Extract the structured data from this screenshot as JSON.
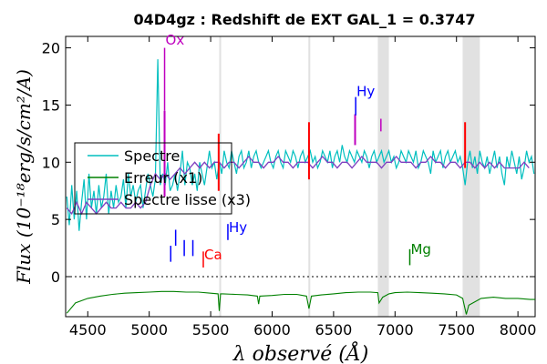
{
  "chart_data": {
    "type": "line",
    "title": "04D4gz : Redshift de EXT GAL_1 = 0.3747",
    "xlabel": "λ observé (Å)",
    "ylabel": "Flux (10⁻¹⁸erg/s/cm²/A)",
    "xlim": [
      4320,
      8140
    ],
    "ylim": [
      -3.5,
      21
    ],
    "x_ticks": [
      4500,
      5000,
      5500,
      6000,
      6500,
      7000,
      7500,
      8000
    ],
    "y_ticks": [
      0,
      5,
      10,
      15,
      20
    ],
    "grid": false,
    "legend": {
      "placement": "center-left",
      "entries": [
        {
          "label": "Spectre",
          "color": "#00bfbf"
        },
        {
          "label": "Erreur (x1)",
          "color": "#008000"
        },
        {
          "label": "Spectre lisse (x3)",
          "color": "#7f3fbf"
        }
      ]
    },
    "zero_line": {
      "y": 0,
      "style": "dotted",
      "color": "#000000"
    },
    "shaded_bands": [
      {
        "x0": 5570,
        "x1": 5585
      },
      {
        "x0": 6295,
        "x1": 6310
      },
      {
        "x0": 6860,
        "x1": 6950
      },
      {
        "x0": 7550,
        "x1": 7690
      }
    ],
    "lines_markers": [
      {
        "label": "Ox",
        "x": 5125,
        "y0": 14.5,
        "y1": 20,
        "label_y": 20.3,
        "color": "#bf00bf"
      },
      {
        "label": "Hy",
        "x": 6680,
        "y0": 14.1,
        "y1": 15.7,
        "label_y": 15.8,
        "color": "#0000ff"
      },
      {
        "label": "",
        "x": 6885,
        "y0": 13.8,
        "y1": 12.7,
        "label_y": null,
        "color": "#bf00bf"
      },
      {
        "label": "Hy",
        "x": 5640,
        "y0": 4.6,
        "y1": 3.2,
        "label_y": 3.9,
        "color": "#0000ff"
      },
      {
        "label": "Ca",
        "x": 5440,
        "y0": 2.2,
        "y1": 0.8,
        "label_y": 1.5,
        "color": "#ff0000"
      },
      {
        "label": "Mg",
        "x": 7120,
        "y0": 2.4,
        "y1": 1.0,
        "label_y": 2.0,
        "color": "#008000"
      },
      {
        "label": "",
        "x": 5175,
        "y0": 2.7,
        "y1": 1.3,
        "label_y": null,
        "color": "#0000ff"
      },
      {
        "label": "",
        "x": 5215,
        "y0": 4.1,
        "y1": 2.7,
        "label_y": null,
        "color": "#0000ff"
      },
      {
        "label": "",
        "x": 5285,
        "y0": 3.2,
        "y1": 1.8,
        "label_y": null,
        "color": "#0000ff"
      },
      {
        "label": "",
        "x": 5355,
        "y0": 3.2,
        "y1": 1.8,
        "label_y": null,
        "color": "#0000ff"
      }
    ],
    "spikes": [
      {
        "x": 5565,
        "y0": 7.5,
        "y1": 12.5,
        "color": "#ff0000"
      },
      {
        "x": 6300,
        "y0": 8.5,
        "y1": 13.5,
        "color": "#ff0000"
      },
      {
        "x": 7570,
        "y0": 9.5,
        "y1": 13.5,
        "color": "#ff0000"
      },
      {
        "x": 5125,
        "y0": 7.0,
        "y1": 14.5,
        "color": "#bf00bf"
      },
      {
        "x": 6675,
        "y0": 11.5,
        "y1": 14.2,
        "color": "#bf00bf"
      }
    ],
    "series": [
      {
        "name": "Spectre",
        "color": "#00bfbf",
        "step": 20,
        "x_start": 4330,
        "values": [
          7,
          4.5,
          8,
          5,
          7.5,
          4,
          6.5,
          8.5,
          5,
          9,
          6,
          7.5,
          5.5,
          8,
          6,
          7,
          9,
          5.5,
          7.5,
          6,
          8,
          6.5,
          7,
          8.5,
          6,
          9,
          7,
          8,
          6.5,
          7.5,
          8,
          6,
          7.5,
          9,
          8,
          7,
          8.5,
          19,
          8,
          9,
          8,
          10,
          7.5,
          8,
          9,
          7.5,
          9,
          11,
          8,
          10,
          9.5,
          8,
          9,
          7.5,
          10,
          9,
          8,
          9.5,
          11,
          9.5,
          10,
          8.5,
          10,
          9,
          11,
          10,
          9.5,
          11,
          10,
          9,
          10.5,
          11,
          9.5,
          10,
          11,
          9.5,
          10.5,
          11,
          10,
          9.5,
          10,
          10.5,
          11,
          10,
          9.5,
          10.5,
          11,
          10,
          9.5,
          11,
          10.5,
          10,
          11,
          10.5,
          9.5,
          10.5,
          11,
          10,
          10.5,
          11,
          10,
          10.5,
          9.5,
          10,
          11,
          10.5,
          10,
          11,
          9.5,
          10.5,
          11,
          10,
          11.5,
          10.5,
          10,
          11,
          10.5,
          10,
          11,
          10.5,
          10,
          11,
          10.5,
          9.5,
          10.5,
          11,
          10,
          10.5,
          11,
          10,
          10.5,
          11,
          10,
          10.5,
          9.5,
          10,
          11,
          10.5,
          10,
          11,
          10.5,
          10,
          11,
          9.5,
          10,
          11,
          10.5,
          10,
          9,
          11,
          10,
          10.5,
          11,
          9.5,
          10.5,
          11,
          10,
          10.5,
          11,
          10,
          10.5,
          9.5,
          8,
          10,
          11,
          9.5,
          10.5,
          9,
          11,
          10,
          9.5,
          10.5,
          9,
          10,
          11,
          9.5,
          10.5,
          9,
          8,
          10.5,
          9.5,
          11,
          10,
          9,
          10.5,
          8.5,
          9.5,
          11,
          10,
          10.5,
          9,
          8.5,
          9.5
        ]
      },
      {
        "name": "Erreur (x1)",
        "color": "#008000",
        "x": [
          4330,
          4400,
          4500,
          4600,
          4700,
          4800,
          4900,
          5000,
          5100,
          5200,
          5300,
          5400,
          5500,
          5560,
          5570,
          5580,
          5600,
          5700,
          5800,
          5880,
          5890,
          5900,
          6000,
          6100,
          6200,
          6280,
          6300,
          6320,
          6400,
          6500,
          6600,
          6700,
          6800,
          6860,
          6870,
          6900,
          6950,
          7000,
          7100,
          7200,
          7300,
          7400,
          7500,
          7550,
          7580,
          7600,
          7700,
          7800,
          7900,
          8000,
          8100,
          8140
        ],
        "values": [
          -3.2,
          -2.3,
          -1.9,
          -1.7,
          -1.55,
          -1.45,
          -1.4,
          -1.35,
          -1.3,
          -1.3,
          -1.35,
          -1.35,
          -1.45,
          -1.5,
          -3.0,
          -1.5,
          -1.5,
          -1.55,
          -1.6,
          -1.7,
          -2.4,
          -1.7,
          -1.65,
          -1.55,
          -1.55,
          -1.7,
          -2.8,
          -1.7,
          -1.6,
          -1.5,
          -1.4,
          -1.35,
          -1.35,
          -1.4,
          -2.3,
          -1.8,
          -1.5,
          -1.4,
          -1.35,
          -1.4,
          -1.45,
          -1.5,
          -1.6,
          -1.9,
          -3.3,
          -2.5,
          -1.9,
          -1.8,
          -1.9,
          -1.9,
          -2.0,
          -2.0
        ]
      },
      {
        "name": "Spectre lisse (x3)",
        "color": "#7f3fbf",
        "step": 40,
        "x_start": 4330,
        "values": [
          6,
          5.5,
          6.5,
          5.5,
          6.5,
          6,
          5.5,
          6,
          6.5,
          6,
          6,
          6.5,
          6,
          6,
          6.5,
          6,
          6.5,
          8,
          9,
          8.5,
          9,
          8.5,
          9,
          9.5,
          9,
          9.5,
          10,
          9.5,
          10,
          9.5,
          10,
          10,
          9.5,
          10,
          10,
          9.5,
          10,
          10.5,
          10,
          10,
          9.5,
          10,
          10,
          10.5,
          10,
          10,
          9.5,
          10,
          10,
          10,
          9.5,
          10,
          10.5,
          10,
          10,
          9.5,
          10,
          10,
          9.5,
          10,
          10.5,
          10,
          10,
          10,
          9.5,
          10,
          10,
          10.5,
          10,
          10,
          10,
          9.5,
          10,
          10,
          10.5,
          10,
          10,
          9.5,
          10,
          10,
          9.5,
          10,
          10,
          9.5,
          10,
          9.5,
          10,
          9.5,
          10,
          9.5,
          9.5,
          9.5,
          9.5,
          10,
          9.5
        ]
      }
    ]
  }
}
